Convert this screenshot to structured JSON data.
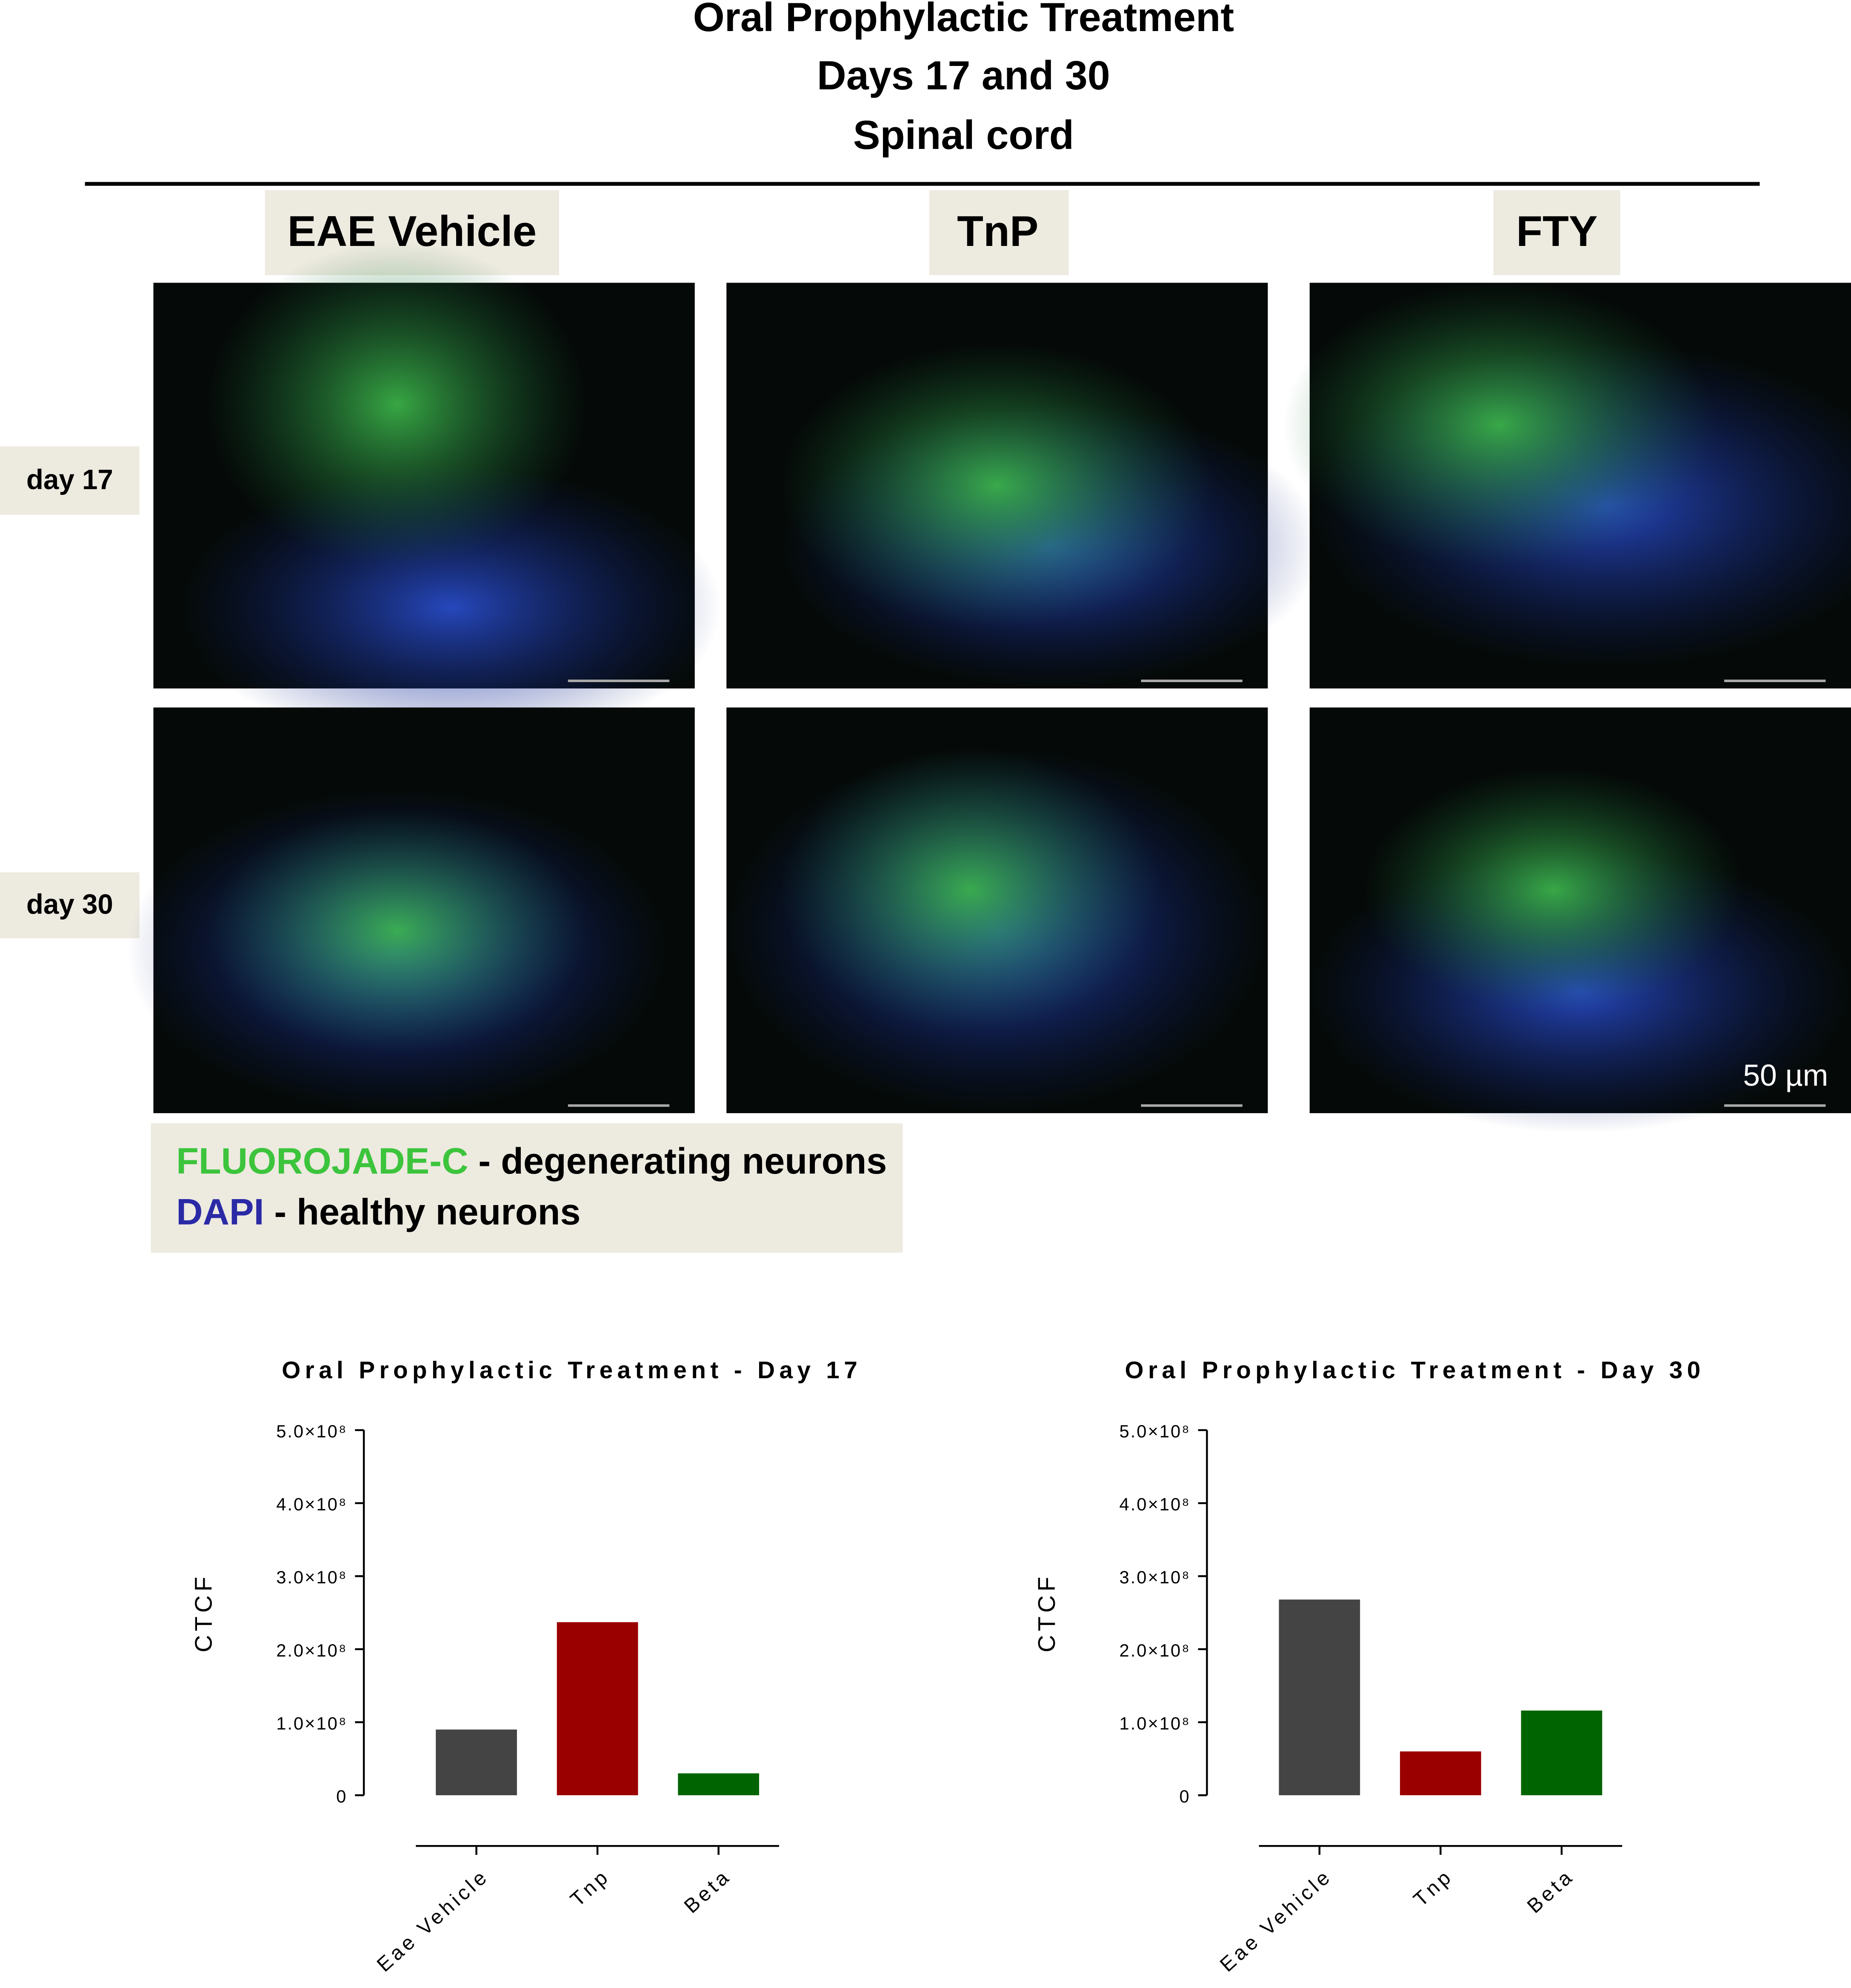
{
  "header": {
    "title_lines": [
      "Oral Prophylactic Treatment",
      "Days 17 and 30",
      "Spinal cord"
    ]
  },
  "columns": [
    "EAE Vehicle",
    "TnP",
    "FTY"
  ],
  "rows": [
    "day 17",
    "day 30"
  ],
  "scale_bar": "50 µm",
  "legend": [
    {
      "stain": "FLUOROJADE-C",
      "description": "- degenerating neurons",
      "color": "#3cc43c"
    },
    {
      "stain": "DAPI",
      "description": "- healthy neurons",
      "color": "#2a2aa6"
    }
  ],
  "chart_data": [
    {
      "type": "bar",
      "title": "Oral Prophylactic Treatment - Day 17",
      "y_label": "CTCF",
      "categories": [
        "Eae Vehicle",
        "Tnp",
        "Beta"
      ],
      "values": [
        90000000,
        237000000,
        30000000
      ],
      "colors": [
        "#444444",
        "#9b0000",
        "#006400"
      ],
      "ylim": [
        0,
        500000000
      ],
      "yticks": [
        0,
        {
          "value": 100000000,
          "label": "1.0×10⁸"
        },
        {
          "value": 200000000,
          "label": "2.0×10⁸"
        },
        {
          "value": 300000000,
          "label": "3.0×10⁸"
        },
        {
          "value": 400000000,
          "label": "4.0×10⁸"
        },
        {
          "value": 500000000,
          "label": "5.0×10⁸"
        }
      ]
    },
    {
      "type": "bar",
      "title": "Oral Prophylactic Treatment - Day 30",
      "y_label": "CTCF",
      "categories": [
        "Eae Vehicle",
        "Tnp",
        "Beta"
      ],
      "values": [
        268000000,
        60000000,
        116000000
      ],
      "colors": [
        "#444444",
        "#9b0000",
        "#006400"
      ],
      "ylim": [
        0,
        500000000
      ],
      "yticks": [
        0,
        {
          "value": 100000000,
          "label": "1.0×10⁸"
        },
        {
          "value": 200000000,
          "label": "2.0×10⁸"
        },
        {
          "value": 300000000,
          "label": "3.0×10⁸"
        },
        {
          "value": 400000000,
          "label": "4.0×10⁸"
        },
        {
          "value": 500000000,
          "label": "5.0×10⁸"
        }
      ]
    }
  ]
}
